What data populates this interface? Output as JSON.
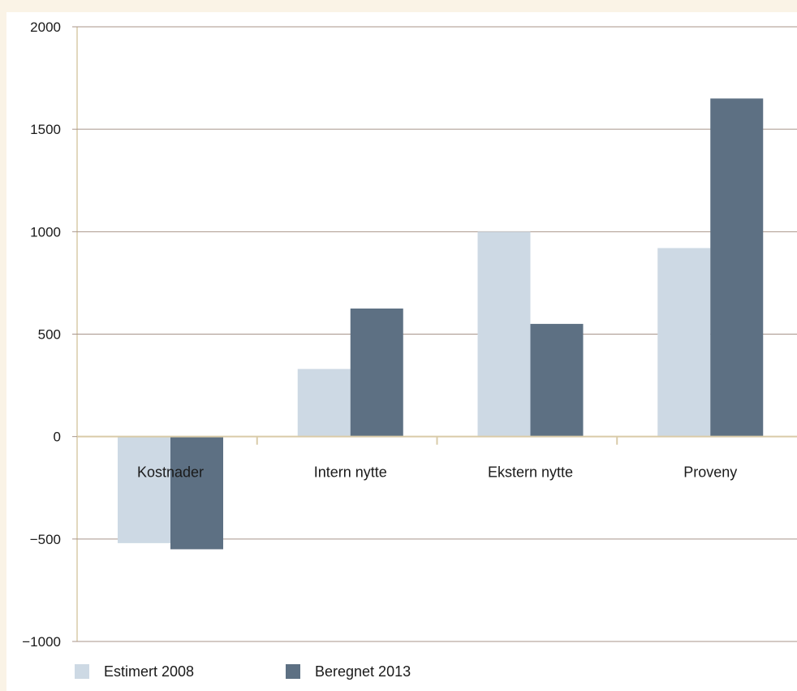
{
  "chart_data": {
    "type": "bar",
    "categories": [
      "Kostnader",
      "Intern nytte",
      "Ekstern nytte",
      "Proveny"
    ],
    "series": [
      {
        "name": "Estimert 2008",
        "values": [
          -520,
          330,
          1000,
          920
        ],
        "color": "#cdd9e4"
      },
      {
        "name": "Beregnet 2013",
        "values": [
          -550,
          625,
          550,
          1650
        ],
        "color": "#5d7083"
      }
    ],
    "yticks": [
      {
        "value": 2000,
        "label": "2000"
      },
      {
        "value": 1500,
        "label": "1500"
      },
      {
        "value": 1000,
        "label": "1000"
      },
      {
        "value": 500,
        "label": "500"
      },
      {
        "value": 0,
        "label": "0"
      },
      {
        "value": -500,
        "label": "−500"
      },
      {
        "value": -1000,
        "label": "−1000"
      }
    ],
    "ylim": [
      -1000,
      2000
    ],
    "grid": true,
    "legend_position": "bottom-left",
    "title": "",
    "xlabel": "",
    "ylabel": "",
    "colors": {
      "grid": "#a8958a",
      "axis": "#d9cba8",
      "background": "#faf3e6",
      "plot": "#ffffff"
    }
  }
}
